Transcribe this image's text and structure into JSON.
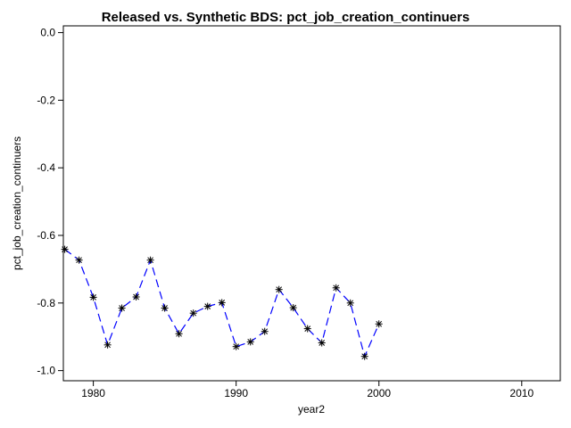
{
  "chart_data": {
    "type": "line",
    "title": "Released vs. Synthetic BDS: pct_job_creation_continuers",
    "xlabel": "year2",
    "ylabel": "pct_job_creation_continuers",
    "xlim": [
      1977.9,
      2012.7
    ],
    "ylim": [
      -1.03,
      0.02
    ],
    "x_ticks": [
      1980,
      1990,
      2000,
      2010
    ],
    "y_ticks": [
      0.0,
      -0.2,
      -0.4,
      -0.6,
      -0.8,
      -1.0
    ],
    "y_tick_labels": [
      "0.0",
      "-0.2",
      "-0.4",
      "-0.6",
      "-0.8",
      "-1.0"
    ],
    "grid": false,
    "series": [
      {
        "marker": "asterisk",
        "line_style": "dashed",
        "color": "#0000ff",
        "marker_color": "#000000",
        "x": [
          1978,
          1979,
          1980,
          1981,
          1982,
          1983,
          1984,
          1985,
          1986,
          1987,
          1988,
          1989,
          1990,
          1991,
          1992,
          1993,
          1994,
          1995,
          1996,
          1997,
          1998,
          1999,
          2000
        ],
        "values": [
          -0.641,
          -0.673,
          -0.783,
          -0.924,
          -0.815,
          -0.782,
          -0.673,
          -0.815,
          -0.891,
          -0.83,
          -0.81,
          -0.799,
          -0.929,
          -0.915,
          -0.884,
          -0.76,
          -0.814,
          -0.876,
          -0.918,
          -0.755,
          -0.8,
          -0.958,
          -0.862
        ]
      }
    ]
  }
}
